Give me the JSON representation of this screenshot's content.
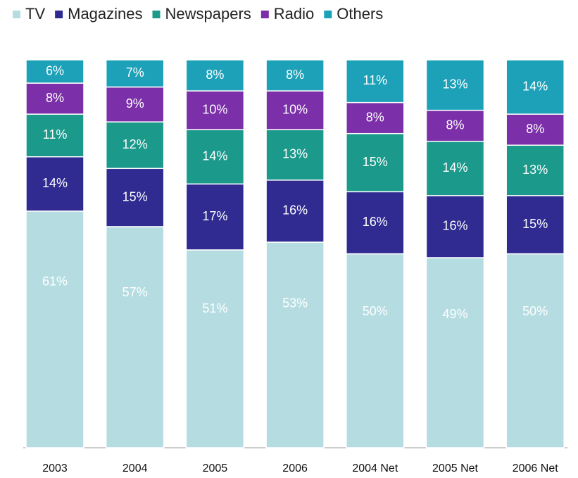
{
  "chart_data": {
    "type": "stacked_bar",
    "categories": [
      "2003",
      "2004",
      "2005",
      "2006",
      "2004 Net",
      "2005 Net",
      "2006 Net"
    ],
    "series": [
      {
        "name": "TV",
        "color": "#b5dde1",
        "values": [
          61,
          57,
          51,
          53,
          50,
          49,
          50
        ],
        "value_labels": [
          "61%",
          "57%",
          "51%",
          "53%",
          "50%",
          "49%",
          "50%"
        ]
      },
      {
        "name": "Magazines",
        "color": "#2f2b91",
        "values": [
          14,
          15,
          17,
          16,
          16,
          16,
          15
        ],
        "value_labels": [
          "14%",
          "15%",
          "17%",
          "16%",
          "16%",
          "16%",
          "15%"
        ]
      },
      {
        "name": "Newspapers",
        "color": "#1b998b",
        "values": [
          11,
          12,
          14,
          13,
          15,
          14,
          13
        ],
        "value_labels": [
          "11%",
          "12%",
          "14%",
          "13%",
          "15%",
          "14%",
          "13%"
        ]
      },
      {
        "name": "Radio",
        "color": "#7b2fa9",
        "values": [
          8,
          9,
          10,
          10,
          8,
          8,
          8
        ],
        "value_labels": [
          "8%",
          "9%",
          "10%",
          "10%",
          "8%",
          "8%",
          "8%"
        ]
      },
      {
        "name": "Others",
        "color": "#1ca1b9",
        "values": [
          6,
          7,
          8,
          8,
          11,
          13,
          14
        ],
        "value_labels": [
          "6%",
          "7%",
          "8%",
          "8%",
          "11%",
          "13%",
          "14%"
        ]
      }
    ],
    "legend": "top-left"
  }
}
